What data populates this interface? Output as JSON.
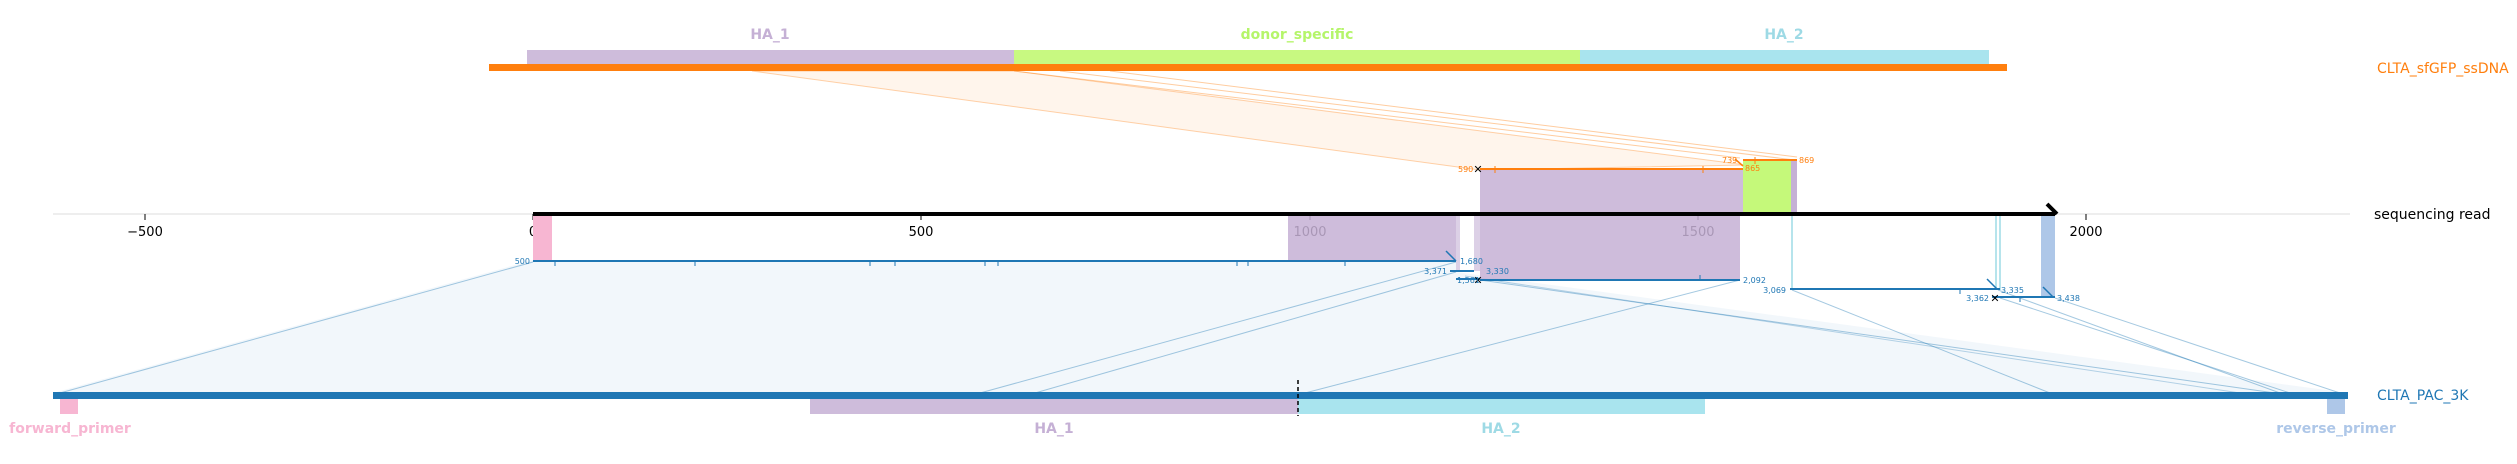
{
  "diagram": {
    "top_reference": {
      "name": "CLTA_sfGFP_ssDNA",
      "color": "#ff7f0e",
      "features": [
        {
          "label": "HA_1",
          "color": "#c5b0d5"
        },
        {
          "label": "donor_specific",
          "color": "#b5f56a"
        },
        {
          "label": "HA_2",
          "color": "#9edae5"
        }
      ],
      "alignment_labels": [
        "739",
        "865",
        "869",
        "590"
      ]
    },
    "read": {
      "name": "sequencing read",
      "axis_ticks": [
        "−500",
        "0",
        "500",
        "1000",
        "1500",
        "2000"
      ]
    },
    "bottom_reference": {
      "name": "CLTA_PAC_3K",
      "color": "#1f77b4",
      "features": [
        {
          "label": "forward_primer",
          "color": "#f7b6d2"
        },
        {
          "label": "HA_1",
          "color": "#c5b0d5"
        },
        {
          "label": "HA_2",
          "color": "#9edae5"
        },
        {
          "label": "reverse_primer",
          "color": "#aec7e8"
        }
      ],
      "alignment_labels": [
        "500",
        "1,680",
        "3,371",
        "1,561",
        "3,330",
        "2,092",
        "3,069",
        "3,335",
        "3,362",
        "3,438"
      ]
    }
  }
}
